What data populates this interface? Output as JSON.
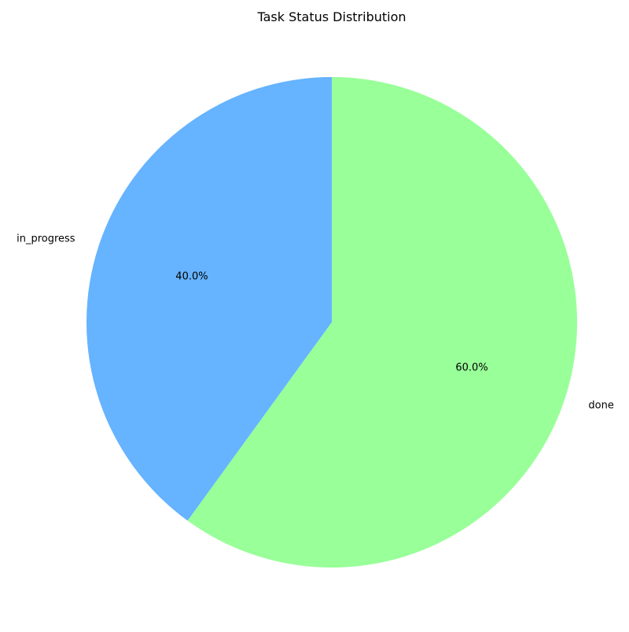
{
  "chart_data": {
    "type": "pie",
    "title": "Task Status Distribution",
    "categories": [
      "in_progress",
      "done"
    ],
    "values": [
      40.0,
      60.0
    ],
    "value_labels": [
      "40.0%",
      "60.0%"
    ],
    "colors": [
      "#66b3ff",
      "#99ff99"
    ],
    "start_angle_deg": 90,
    "direction": "counterclockwise",
    "legend": "none"
  }
}
